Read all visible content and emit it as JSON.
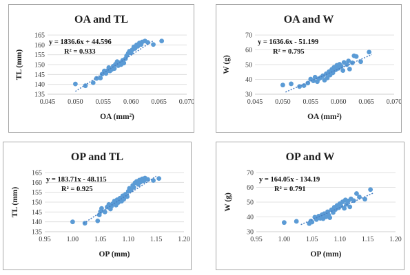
{
  "chart_data": [
    {
      "type": "scatter",
      "title": "OA and TL",
      "xlabel": "OA (mm²)",
      "ylabel": "TL (mm)",
      "xlim": [
        0.045,
        0.07
      ],
      "ylim": [
        135,
        165
      ],
      "x_ticks": [
        "0.045",
        "0.050",
        "0.055",
        "0.060",
        "0.065",
        "0.070"
      ],
      "y_ticks": [
        "135",
        "140",
        "145",
        "150",
        "155",
        "160",
        "165"
      ],
      "x_tick_values": [
        0.045,
        0.05,
        0.055,
        0.06,
        0.065,
        0.07
      ],
      "y_tick_values": [
        135,
        140,
        145,
        150,
        155,
        160,
        165
      ],
      "equation": "y = 1836.6x + 44.596",
      "r2": "R² = 0.933",
      "trendline": {
        "slope": 1836.6,
        "intercept": 44.596,
        "x_range": [
          0.05,
          0.064
        ]
      },
      "grid": "horizontal",
      "points": [
        [
          0.05,
          140.2
        ],
        [
          0.0518,
          139.3
        ],
        [
          0.0532,
          140.8
        ],
        [
          0.0538,
          143.0
        ],
        [
          0.0545,
          143.2
        ],
        [
          0.0548,
          145.2
        ],
        [
          0.0552,
          146.8
        ],
        [
          0.0555,
          145.5
        ],
        [
          0.0558,
          147.0
        ],
        [
          0.056,
          148.5
        ],
        [
          0.0562,
          146.8
        ],
        [
          0.0565,
          147.5
        ],
        [
          0.0568,
          149.2
        ],
        [
          0.057,
          148.0
        ],
        [
          0.0572,
          150.2
        ],
        [
          0.0575,
          151.5
        ],
        [
          0.0577,
          149.5
        ],
        [
          0.058,
          151.0
        ],
        [
          0.0582,
          150.0
        ],
        [
          0.0585,
          152.2
        ],
        [
          0.0587,
          150.8
        ],
        [
          0.059,
          153.0
        ],
        [
          0.0592,
          154.5
        ],
        [
          0.0595,
          155.8
        ],
        [
          0.0597,
          156.8
        ],
        [
          0.06,
          156.0
        ],
        [
          0.0602,
          157.5
        ],
        [
          0.0605,
          159.0
        ],
        [
          0.0607,
          158.2
        ],
        [
          0.061,
          160.0
        ],
        [
          0.0612,
          159.3
        ],
        [
          0.0615,
          161.0
        ],
        [
          0.0618,
          160.2
        ],
        [
          0.062,
          161.5
        ],
        [
          0.0625,
          162.0
        ],
        [
          0.063,
          161.3
        ],
        [
          0.064,
          160.2
        ],
        [
          0.0655,
          162.0
        ]
      ]
    },
    {
      "type": "scatter",
      "title": "OA and W",
      "xlabel": "OA (mm²)",
      "ylabel": "W (g)",
      "xlim": [
        0.045,
        0.07
      ],
      "ylim": [
        30,
        70
      ],
      "x_ticks": [
        "0.045",
        "0.050",
        "0.055",
        "0.060",
        "0.065",
        "0.070"
      ],
      "y_ticks": [
        "30",
        "40",
        "50",
        "60",
        "70"
      ],
      "x_tick_values": [
        0.045,
        0.05,
        0.055,
        0.06,
        0.065,
        0.07
      ],
      "y_tick_values": [
        30,
        40,
        50,
        60,
        70
      ],
      "equation": "y = 1636.6x - 51.199",
      "r2": "R² = 0.795",
      "trendline": {
        "slope": 1636.6,
        "intercept": -51.199,
        "x_range": [
          0.0505,
          0.066
        ]
      },
      "grid": "horizontal",
      "points": [
        [
          0.05,
          36.2
        ],
        [
          0.0515,
          37.0
        ],
        [
          0.053,
          35.2
        ],
        [
          0.0538,
          35.8
        ],
        [
          0.0545,
          37.5
        ],
        [
          0.055,
          40.2
        ],
        [
          0.0555,
          39.0
        ],
        [
          0.0558,
          41.5
        ],
        [
          0.0562,
          38.5
        ],
        [
          0.0565,
          40.5
        ],
        [
          0.0568,
          41.2
        ],
        [
          0.0572,
          42.5
        ],
        [
          0.0575,
          39.5
        ],
        [
          0.0578,
          43.8
        ],
        [
          0.058,
          41.0
        ],
        [
          0.0583,
          45.2
        ],
        [
          0.0585,
          43.0
        ],
        [
          0.0588,
          46.8
        ],
        [
          0.059,
          44.5
        ],
        [
          0.0592,
          48.2
        ],
        [
          0.0595,
          46.5
        ],
        [
          0.0597,
          49.5
        ],
        [
          0.06,
          47.5
        ],
        [
          0.0602,
          50.2
        ],
        [
          0.0605,
          48.8
        ],
        [
          0.0608,
          46.0
        ],
        [
          0.061,
          51.5
        ],
        [
          0.0615,
          50.0
        ],
        [
          0.0618,
          52.5
        ],
        [
          0.062,
          47.0
        ],
        [
          0.0625,
          51.2
        ],
        [
          0.0628,
          56.0
        ],
        [
          0.0632,
          55.5
        ],
        [
          0.064,
          52.0
        ],
        [
          0.0655,
          58.5
        ]
      ]
    },
    {
      "type": "scatter",
      "title": "OP and TL",
      "xlabel": "OP (mm)",
      "ylabel": "TL (mm)",
      "xlim": [
        0.95,
        1.2
      ],
      "ylim": [
        135,
        165
      ],
      "x_ticks": [
        "0.95",
        "1.00",
        "1.05",
        "1.10",
        "1.15",
        "1.20"
      ],
      "y_ticks": [
        "135",
        "140",
        "145",
        "150",
        "155",
        "160",
        "165"
      ],
      "x_tick_values": [
        0.95,
        1.0,
        1.05,
        1.1,
        1.15,
        1.2
      ],
      "y_tick_values": [
        135,
        140,
        145,
        150,
        155,
        160,
        165
      ],
      "equation": "y = 183.71x - 48.115",
      "r2": "R² = 0.925",
      "trendline": {
        "slope": 183.71,
        "intercept": -48.115,
        "x_range": [
          1.02,
          1.15
        ]
      },
      "grid": "horizontal",
      "points": [
        [
          1.0,
          140.0
        ],
        [
          1.022,
          139.3
        ],
        [
          1.045,
          140.5
        ],
        [
          1.048,
          143.5
        ],
        [
          1.05,
          145.2
        ],
        [
          1.052,
          146.8
        ],
        [
          1.058,
          145.0
        ],
        [
          1.062,
          147.5
        ],
        [
          1.065,
          148.8
        ],
        [
          1.068,
          146.5
        ],
        [
          1.07,
          148.0
        ],
        [
          1.072,
          149.2
        ],
        [
          1.075,
          150.5
        ],
        [
          1.078,
          148.5
        ],
        [
          1.08,
          151.2
        ],
        [
          1.082,
          149.8
        ],
        [
          1.085,
          152.0
        ],
        [
          1.088,
          150.5
        ],
        [
          1.09,
          153.2
        ],
        [
          1.092,
          151.5
        ],
        [
          1.095,
          154.0
        ],
        [
          1.098,
          152.8
        ],
        [
          1.1,
          155.5
        ],
        [
          1.102,
          157.0
        ],
        [
          1.105,
          156.2
        ],
        [
          1.108,
          158.5
        ],
        [
          1.11,
          157.5
        ],
        [
          1.112,
          159.8
        ],
        [
          1.115,
          160.5
        ],
        [
          1.118,
          159.0
        ],
        [
          1.12,
          161.2
        ],
        [
          1.122,
          160.2
        ],
        [
          1.125,
          161.8
        ],
        [
          1.128,
          160.8
        ],
        [
          1.13,
          162.2
        ],
        [
          1.135,
          161.5
        ],
        [
          1.145,
          161.0
        ],
        [
          1.155,
          162.0
        ]
      ]
    },
    {
      "type": "scatter",
      "title": "OP and W",
      "xlabel": "OP (mm)",
      "ylabel": "W (g)",
      "xlim": [
        0.95,
        1.2
      ],
      "ylim": [
        30,
        70
      ],
      "x_ticks": [
        "0.95",
        "1.00",
        "1.05",
        "1.10",
        "1.15",
        "1.20"
      ],
      "y_ticks": [
        "30",
        "40",
        "50",
        "60",
        "70"
      ],
      "x_tick_values": [
        0.95,
        1.0,
        1.05,
        1.1,
        1.15,
        1.2
      ],
      "y_tick_values": [
        30,
        40,
        50,
        60,
        70
      ],
      "equation": "y = 164.05x - 134.19",
      "r2": "R² = 0.791",
      "trendline": {
        "slope": 164.05,
        "intercept": -134.19,
        "x_range": [
          1.03,
          1.16
        ]
      },
      "grid": "horizontal",
      "points": [
        [
          1.0,
          36.2
        ],
        [
          1.022,
          37.0
        ],
        [
          1.045,
          35.5
        ],
        [
          1.048,
          37.2
        ],
        [
          1.05,
          36.5
        ],
        [
          1.055,
          39.8
        ],
        [
          1.058,
          38.2
        ],
        [
          1.062,
          40.5
        ],
        [
          1.065,
          39.0
        ],
        [
          1.068,
          41.5
        ],
        [
          1.07,
          38.8
        ],
        [
          1.072,
          42.2
        ],
        [
          1.075,
          40.0
        ],
        [
          1.078,
          43.5
        ],
        [
          1.08,
          41.2
        ],
        [
          1.082,
          39.5
        ],
        [
          1.085,
          44.8
        ],
        [
          1.088,
          43.0
        ],
        [
          1.09,
          46.5
        ],
        [
          1.092,
          45.0
        ],
        [
          1.095,
          47.8
        ],
        [
          1.098,
          46.2
        ],
        [
          1.1,
          49.0
        ],
        [
          1.102,
          47.5
        ],
        [
          1.105,
          50.2
        ],
        [
          1.108,
          45.8
        ],
        [
          1.11,
          51.5
        ],
        [
          1.112,
          48.5
        ],
        [
          1.115,
          50.8
        ],
        [
          1.118,
          46.8
        ],
        [
          1.12,
          52.2
        ],
        [
          1.125,
          51.0
        ],
        [
          1.13,
          55.8
        ],
        [
          1.135,
          53.5
        ],
        [
          1.145,
          52.0
        ],
        [
          1.155,
          58.5
        ]
      ]
    }
  ]
}
